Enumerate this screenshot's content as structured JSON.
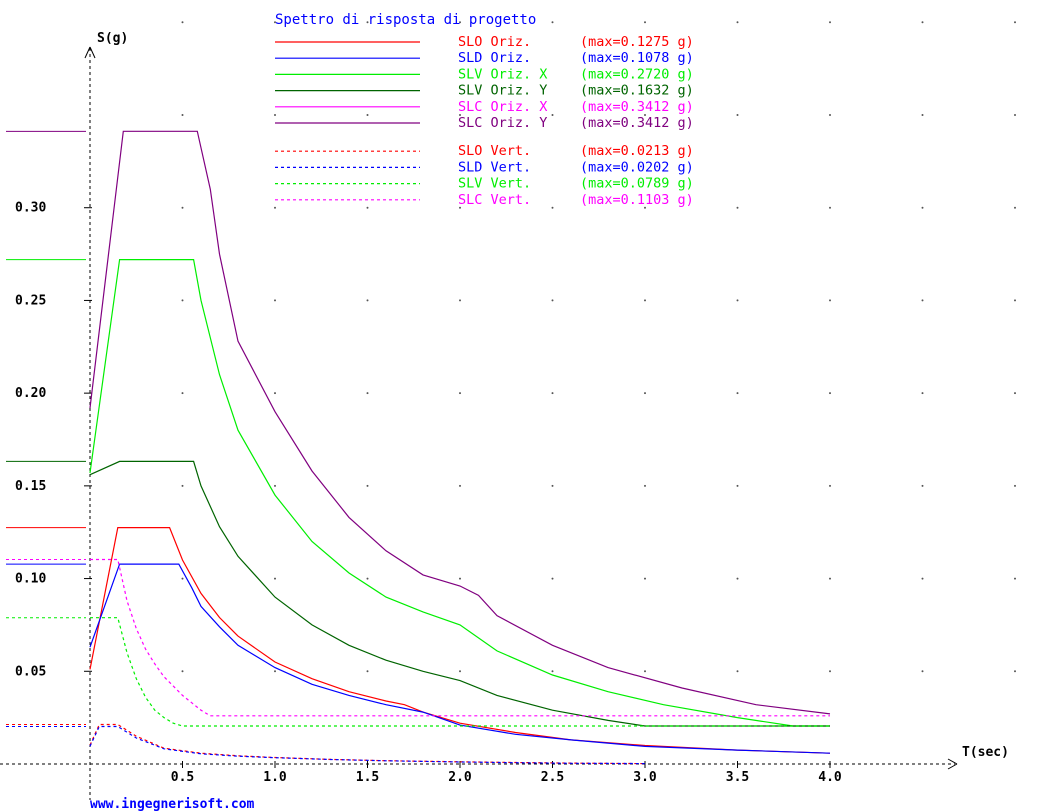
{
  "website": "www.ingegnerisoft.com",
  "chart_data": {
    "type": "line",
    "title": "Spettro di risposta di progetto",
    "xlabel": "T(sec)",
    "ylabel": "S(g)",
    "xlim": [
      0,
      4.0
    ],
    "ylim": [
      0,
      0.35
    ],
    "xticks": [
      "0.5",
      "1.0",
      "1.5",
      "2.0",
      "2.5",
      "3.0",
      "3.5",
      "4.0"
    ],
    "yticks": [
      "0.05",
      "0.10",
      "0.15",
      "0.20",
      "0.25",
      "0.30"
    ],
    "grid": "dotted",
    "legend": "top-center",
    "series": [
      {
        "name": "SLO Oriz.",
        "label": "(max=0.1275 g)",
        "color": "#ff0000",
        "style": "solid",
        "x": [
          0,
          0.15,
          0.43,
          0.5,
          0.6,
          0.7,
          0.8,
          1.0,
          1.2,
          1.4,
          1.6,
          1.7,
          1.8,
          2.0,
          2.3,
          2.6,
          3.0,
          3.5,
          4.0
        ],
        "y": [
          0.051,
          0.1275,
          0.1275,
          0.11,
          0.092,
          0.079,
          0.069,
          0.055,
          0.046,
          0.039,
          0.034,
          0.032,
          0.028,
          0.022,
          0.017,
          0.013,
          0.01,
          0.0075,
          0.0058
        ]
      },
      {
        "name": "SLD Oriz.",
        "label": "(max=0.1078 g)",
        "color": "#0000ff",
        "style": "solid",
        "x": [
          0,
          0.16,
          0.48,
          0.55,
          0.6,
          0.7,
          0.8,
          1.0,
          1.2,
          1.4,
          1.6,
          1.8,
          2.0,
          2.3,
          2.6,
          3.0,
          3.5,
          4.0
        ],
        "y": [
          0.063,
          0.1078,
          0.1078,
          0.095,
          0.085,
          0.074,
          0.064,
          0.052,
          0.043,
          0.037,
          0.032,
          0.028,
          0.021,
          0.016,
          0.013,
          0.0095,
          0.0075,
          0.0058
        ]
      },
      {
        "name": "SLV Oriz. X",
        "label": "(max=0.2720 g)",
        "color": "#00ee00",
        "style": "solid",
        "x": [
          0,
          0.16,
          0.56,
          0.6,
          0.7,
          0.8,
          1.0,
          1.2,
          1.4,
          1.6,
          1.8,
          2.0,
          2.2,
          2.5,
          2.8,
          3.1,
          3.5,
          3.8,
          4.0
        ],
        "y": [
          0.157,
          0.272,
          0.272,
          0.25,
          0.21,
          0.18,
          0.145,
          0.12,
          0.103,
          0.09,
          0.082,
          0.075,
          0.061,
          0.048,
          0.039,
          0.032,
          0.025,
          0.0205,
          0.0205
        ]
      },
      {
        "name": "SLV Oriz. Y",
        "label": "(max=0.1632 g)",
        "color": "#006400",
        "style": "solid",
        "x": [
          0,
          0.16,
          0.56,
          0.6,
          0.7,
          0.8,
          1.0,
          1.2,
          1.4,
          1.6,
          1.8,
          2.0,
          2.2,
          2.5,
          2.8,
          3.0,
          3.5,
          4.0
        ],
        "y": [
          0.156,
          0.1632,
          0.1632,
          0.15,
          0.128,
          0.112,
          0.09,
          0.075,
          0.064,
          0.056,
          0.05,
          0.045,
          0.037,
          0.029,
          0.0235,
          0.0205,
          0.0205,
          0.0205
        ]
      },
      {
        "name": "SLC Oriz. X",
        "label": "(max=0.3412 g)",
        "color": "#ff00ff",
        "style": "solid",
        "x": [],
        "y": []
      },
      {
        "name": "SLC Oriz. Y",
        "label": "(max=0.3412 g)",
        "color": "#800080",
        "style": "solid",
        "x": [
          0,
          0.18,
          0.58,
          0.65,
          0.7,
          0.8,
          1.0,
          1.2,
          1.4,
          1.6,
          1.8,
          2.0,
          2.1,
          2.2,
          2.5,
          2.8,
          3.2,
          3.6,
          4.0
        ],
        "y": [
          0.192,
          0.3412,
          0.3412,
          0.31,
          0.275,
          0.228,
          0.19,
          0.158,
          0.133,
          0.115,
          0.102,
          0.096,
          0.091,
          0.08,
          0.064,
          0.052,
          0.041,
          0.032,
          0.027
        ]
      },
      {
        "name": "SLO Vert.",
        "label": "(max=0.0213 g)",
        "color": "#ff0000",
        "style": "dashed",
        "x": [
          0,
          0.05,
          0.15,
          0.25,
          0.4,
          0.6,
          0.8,
          1.0,
          1.3,
          1.6,
          2.0,
          2.3,
          2.6,
          2.8,
          3.0
        ],
        "y": [
          0.0102,
          0.0213,
          0.0213,
          0.015,
          0.0085,
          0.0058,
          0.0044,
          0.0035,
          0.0025,
          0.0018,
          0.0012,
          0.0008,
          0.0005,
          0.0003,
          0.0002
        ]
      },
      {
        "name": "SLD Vert.",
        "label": "(max=0.0202 g)",
        "color": "#0000ff",
        "style": "dashed",
        "x": [
          0,
          0.05,
          0.15,
          0.25,
          0.4,
          0.6,
          0.8,
          1.0,
          1.3,
          1.6,
          2.0,
          2.3,
          2.6,
          2.8,
          3.0
        ],
        "y": [
          0.0096,
          0.0202,
          0.0202,
          0.014,
          0.0082,
          0.0055,
          0.0042,
          0.0034,
          0.0024,
          0.0017,
          0.0011,
          0.0007,
          0.0004,
          0.0003,
          0.0002
        ]
      },
      {
        "name": "SLV Vert.",
        "label": "(max=0.0789 g)",
        "color": "#00ee00",
        "style": "dashed",
        "x": [
          0,
          0.15,
          0.2,
          0.25,
          0.3,
          0.35,
          0.4,
          0.45,
          0.5,
          4.0
        ],
        "y": [
          0.0789,
          0.0789,
          0.06,
          0.046,
          0.036,
          0.029,
          0.025,
          0.022,
          0.0205,
          0.0205
        ]
      },
      {
        "name": "SLC Vert.",
        "label": "(max=0.1103 g)",
        "color": "#ff00ff",
        "style": "dashed",
        "x": [
          0,
          0.15,
          0.2,
          0.25,
          0.3,
          0.35,
          0.4,
          0.45,
          0.5,
          0.55,
          0.6,
          0.65,
          4.0
        ],
        "y": [
          0.1103,
          0.1103,
          0.088,
          0.073,
          0.062,
          0.054,
          0.047,
          0.042,
          0.037,
          0.033,
          0.029,
          0.026,
          0.026
        ]
      }
    ]
  }
}
